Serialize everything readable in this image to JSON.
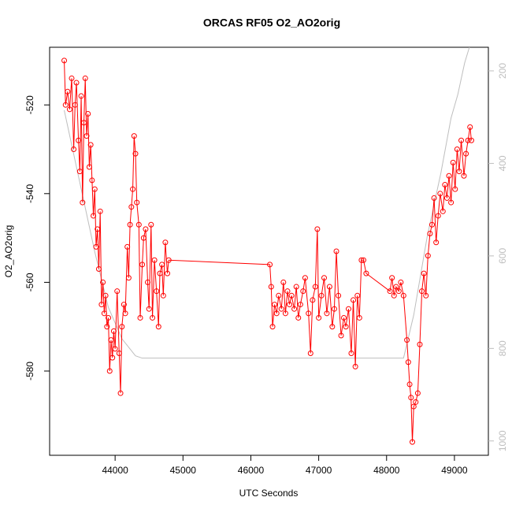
{
  "chart_data": {
    "type": "line",
    "title": "ORCAS RF05 O2_AO2orig",
    "x_label": "UTC Seconds",
    "y_label": "O2_AO2orig",
    "xlim": [
      43035,
      49500
    ],
    "xticks": [
      44000,
      45000,
      46000,
      47000,
      48000,
      49000
    ],
    "ylim": [
      -599,
      -507
    ],
    "yticks": [
      -520,
      -540,
      -560,
      -580
    ],
    "y2lim": [
      1031,
      149
    ],
    "y2ticks": [
      200,
      400,
      600,
      800,
      1000
    ],
    "series": [
      {
        "color": "#ff0000",
        "markers": true,
        "x": [
          43250,
          43270,
          43300,
          43330,
          43360,
          43390,
          43410,
          43430,
          43460,
          43480,
          43500,
          43520,
          43540,
          43560,
          43580,
          43600,
          43620,
          43640,
          43660,
          43680,
          43700,
          43720,
          43740,
          43760,
          43780,
          43800,
          43820,
          43840,
          43860,
          43880,
          43900,
          43920,
          43940,
          43960,
          43980,
          44000,
          44030,
          44060,
          44080,
          44100,
          44130,
          44150,
          44180,
          44200,
          44220,
          44240,
          44260,
          44280,
          44300,
          44320,
          44350,
          44370,
          44400,
          44420,
          44450,
          44480,
          44500,
          44530,
          44550,
          44580,
          44610,
          44640,
          44660,
          44690,
          44710,
          44740,
          44770,
          44790,
          46280,
          46300,
          46320,
          46350,
          46380,
          46410,
          46450,
          46480,
          46510,
          46540,
          46570,
          46600,
          46640,
          46670,
          46700,
          46730,
          46770,
          46800,
          46850,
          46880,
          46910,
          46950,
          46980,
          47000,
          47040,
          47080,
          47120,
          47160,
          47200,
          47230,
          47260,
          47290,
          47330,
          47370,
          47400,
          47440,
          47480,
          47510,
          47540,
          47570,
          47600,
          47630,
          47660,
          47700,
          48050,
          48080,
          48110,
          48140,
          48180,
          48210,
          48250,
          48300,
          48320,
          48340,
          48360,
          48380,
          48400,
          48430,
          48460,
          48490,
          48520,
          48550,
          48580,
          48610,
          48640,
          48670,
          48700,
          48730,
          48760,
          48790,
          48830,
          48860,
          48890,
          48920,
          48950,
          48980,
          49010,
          49040,
          49070,
          49100,
          49140,
          49170,
          49200,
          49230,
          49250
        ],
        "values": [
          -510,
          -520,
          -517,
          -521,
          -514,
          -530,
          -520,
          -515,
          -528,
          -535,
          -518,
          -542,
          -524,
          -514,
          -527,
          -522,
          -534,
          -529,
          -537,
          -545,
          -539,
          -552,
          -548,
          -557,
          -544,
          -565,
          -560,
          -567,
          -563,
          -570,
          -568,
          -580,
          -573,
          -577,
          -571,
          -575,
          -562,
          -576,
          -585,
          -570,
          -565,
          -567,
          -552,
          -559,
          -547,
          -543,
          -539,
          -527,
          -531,
          -542,
          -547,
          -568,
          -556,
          -550,
          -548,
          -560,
          -566,
          -547,
          -568,
          -555,
          -562,
          -570,
          -558,
          -556,
          -563,
          -551,
          -558,
          -555,
          -556,
          -561,
          -570,
          -565,
          -567,
          -563,
          -566,
          -560,
          -567,
          -562,
          -565,
          -563,
          -566,
          -561,
          -568,
          -565,
          -562,
          -559,
          -567,
          -576,
          -564,
          -561,
          -548,
          -568,
          -563,
          -559,
          -567,
          -561,
          -570,
          -566,
          -553,
          -563,
          -572,
          -568,
          -570,
          -566,
          -576,
          -564,
          -579,
          -563,
          -568,
          -555,
          -555,
          -558,
          -562,
          -559,
          -563,
          -561,
          -562,
          -560,
          -563,
          -573,
          -578,
          -583,
          -586,
          -596,
          -588,
          -587,
          -585,
          -574,
          -562,
          -558,
          -563,
          -554,
          -549,
          -547,
          -541,
          -551,
          -545,
          -540,
          -544,
          -538,
          -541,
          -536,
          -542,
          -533,
          -539,
          -530,
          -535,
          -528,
          -536,
          -531,
          -528,
          -525,
          -528
        ]
      },
      {
        "color": "#bebebe",
        "axis": "y2",
        "markers": false,
        "x": [
          43250,
          43300,
          43500,
          43700,
          43900,
          44100,
          44300,
          44400,
          48250,
          48400,
          48600,
          48800,
          48950,
          49050,
          49150,
          49220
        ],
        "values": [
          285,
          319,
          455,
          591,
          711,
          779,
          816,
          821,
          821,
          728,
          557,
          421,
          302,
          251,
          183,
          149
        ]
      }
    ]
  }
}
